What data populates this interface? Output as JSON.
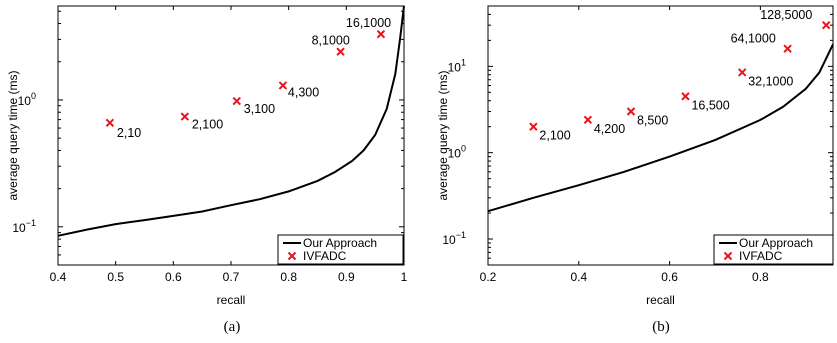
{
  "chart_data": [
    {
      "type": "line",
      "caption": "(a)",
      "xlabel": "recall",
      "ylabel": "average query time (ms)",
      "xlim": [
        0.4,
        1.0
      ],
      "ylim": [
        0.05,
        5.5
      ],
      "yscale": "log",
      "xticks": [
        "0.4",
        "0.5",
        "0.6",
        "0.7",
        "0.8",
        "0.9",
        "1"
      ],
      "yticks": [
        {
          "value": 0.1,
          "base": "10",
          "exp": "−1"
        },
        {
          "value": 1,
          "base": "10",
          "exp": "0"
        }
      ],
      "legend_position": "bottom-right",
      "series": [
        {
          "name": "Our Approach",
          "kind": "line",
          "color": "#000000",
          "x": [
            0.4,
            0.45,
            0.5,
            0.55,
            0.6,
            0.65,
            0.7,
            0.75,
            0.8,
            0.85,
            0.88,
            0.91,
            0.93,
            0.95,
            0.97,
            0.985,
            0.993,
            1.0
          ],
          "y": [
            0.085,
            0.095,
            0.105,
            0.113,
            0.122,
            0.132,
            0.148,
            0.165,
            0.19,
            0.23,
            0.27,
            0.33,
            0.4,
            0.53,
            0.85,
            1.6,
            3.0,
            5.5
          ]
        },
        {
          "name": "IVFADC",
          "kind": "scatter",
          "color": "#e8141c",
          "points": [
            {
              "x": 0.49,
              "y": 0.66,
              "label": "2,10"
            },
            {
              "x": 0.62,
              "y": 0.74,
              "label": "2,100"
            },
            {
              "x": 0.71,
              "y": 0.98,
              "label": "3,100"
            },
            {
              "x": 0.79,
              "y": 1.3,
              "label": "4,300"
            },
            {
              "x": 0.89,
              "y": 2.4,
              "label": "8,1000"
            },
            {
              "x": 0.96,
              "y": 3.3,
              "label": "16,1000"
            }
          ]
        }
      ]
    },
    {
      "type": "line",
      "caption": "(b)",
      "xlabel": "recall",
      "ylabel": "average query time (ms)",
      "xlim": [
        0.2,
        0.96
      ],
      "ylim": [
        0.05,
        50
      ],
      "yscale": "log",
      "xticks": [
        "0.2",
        "0.4",
        "0.6",
        "0.8"
      ],
      "yticks": [
        {
          "value": 0.1,
          "base": "10",
          "exp": "−1"
        },
        {
          "value": 1,
          "base": "10",
          "exp": "0"
        },
        {
          "value": 10,
          "base": "10",
          "exp": "1"
        }
      ],
      "legend_position": "bottom-right",
      "series": [
        {
          "name": "Our Approach",
          "kind": "line",
          "color": "#000000",
          "x": [
            0.2,
            0.3,
            0.4,
            0.5,
            0.6,
            0.7,
            0.8,
            0.85,
            0.9,
            0.93,
            0.96
          ],
          "y": [
            0.21,
            0.3,
            0.42,
            0.6,
            0.9,
            1.4,
            2.4,
            3.4,
            5.5,
            8.5,
            18.0
          ]
        },
        {
          "name": "IVFADC",
          "kind": "scatter",
          "color": "#e8141c",
          "points": [
            {
              "x": 0.3,
              "y": 2.0,
              "label": "2,100"
            },
            {
              "x": 0.42,
              "y": 2.4,
              "label": "4,200"
            },
            {
              "x": 0.515,
              "y": 3.0,
              "label": "8,500"
            },
            {
              "x": 0.635,
              "y": 4.5,
              "label": "16,500"
            },
            {
              "x": 0.76,
              "y": 8.5,
              "label": "32,1000"
            },
            {
              "x": 0.86,
              "y": 16.0,
              "label": "64,1000"
            },
            {
              "x": 0.945,
              "y": 30.0,
              "label": "128,5000"
            }
          ]
        }
      ]
    }
  ]
}
